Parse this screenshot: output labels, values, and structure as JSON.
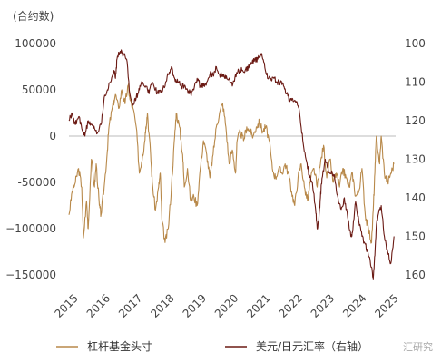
{
  "chart_data": {
    "type": "line",
    "unit_label": "(合约数)",
    "left_axis": {
      "min": -150000,
      "max": 100000,
      "ticks": [
        100000,
        50000,
        0,
        -50000,
        -100000,
        -150000
      ],
      "tick_labels": [
        "100000",
        "50000",
        "0",
        "-50000",
        "−100000",
        "−150000"
      ]
    },
    "right_axis": {
      "min": 100,
      "max": 160,
      "reversed": true,
      "ticks": [
        100,
        110,
        120,
        130,
        140,
        150,
        160
      ],
      "tick_labels": [
        "100",
        "110",
        "120",
        "130",
        "140",
        "150",
        "160"
      ]
    },
    "x_axis": {
      "min": 2015.0,
      "max": 2025.2,
      "tick_labels": [
        "2015",
        "2016",
        "2017",
        "2018",
        "2019",
        "2020",
        "2021",
        "2022",
        "2023",
        "2024",
        "2025"
      ],
      "tick_values": [
        2015,
        2016,
        2017,
        2018,
        2019,
        2020,
        2021,
        2022,
        2023,
        2024,
        2025
      ]
    },
    "grid": false,
    "legend_position": "bottom",
    "series": [
      {
        "name": "杠杆基金头寸",
        "axis": "left",
        "color": "#b8894a",
        "points": [
          [
            2015.0,
            -85000
          ],
          [
            2015.1,
            -60000
          ],
          [
            2015.2,
            -50000
          ],
          [
            2015.3,
            -35000
          ],
          [
            2015.4,
            -55000
          ],
          [
            2015.45,
            -110000
          ],
          [
            2015.55,
            -70000
          ],
          [
            2015.6,
            -100000
          ],
          [
            2015.7,
            -25000
          ],
          [
            2015.8,
            -55000
          ],
          [
            2015.85,
            -30000
          ],
          [
            2015.95,
            -75000
          ],
          [
            2016.0,
            -85000
          ],
          [
            2016.1,
            -55000
          ],
          [
            2016.2,
            -15000
          ],
          [
            2016.25,
            10000
          ],
          [
            2016.35,
            30000
          ],
          [
            2016.45,
            45000
          ],
          [
            2016.55,
            30000
          ],
          [
            2016.65,
            50000
          ],
          [
            2016.75,
            35000
          ],
          [
            2016.85,
            55000
          ],
          [
            2016.9,
            40000
          ],
          [
            2017.0,
            30000
          ],
          [
            2017.1,
            10000
          ],
          [
            2017.2,
            -40000
          ],
          [
            2017.3,
            -20000
          ],
          [
            2017.35,
            -10000
          ],
          [
            2017.4,
            10000
          ],
          [
            2017.45,
            25000
          ],
          [
            2017.55,
            -20000
          ],
          [
            2017.6,
            -50000
          ],
          [
            2017.7,
            -80000
          ],
          [
            2017.8,
            -55000
          ],
          [
            2017.85,
            -40000
          ],
          [
            2017.9,
            -90000
          ],
          [
            2018.0,
            -115000
          ],
          [
            2018.1,
            -100000
          ],
          [
            2018.2,
            -55000
          ],
          [
            2018.3,
            0
          ],
          [
            2018.35,
            25000
          ],
          [
            2018.45,
            10000
          ],
          [
            2018.55,
            -20000
          ],
          [
            2018.6,
            -55000
          ],
          [
            2018.7,
            -35000
          ],
          [
            2018.8,
            -70000
          ],
          [
            2018.9,
            -65000
          ],
          [
            2019.0,
            -75000
          ],
          [
            2019.1,
            -35000
          ],
          [
            2019.2,
            -5000
          ],
          [
            2019.3,
            -20000
          ],
          [
            2019.4,
            -45000
          ],
          [
            2019.5,
            -20000
          ],
          [
            2019.6,
            10000
          ],
          [
            2019.7,
            25000
          ],
          [
            2019.8,
            35000
          ],
          [
            2019.9,
            10000
          ],
          [
            2020.0,
            -30000
          ],
          [
            2020.1,
            -15000
          ],
          [
            2020.2,
            -40000
          ],
          [
            2020.25,
            -5000
          ],
          [
            2020.35,
            5000
          ],
          [
            2020.45,
            -5000
          ],
          [
            2020.55,
            10000
          ],
          [
            2020.65,
            5000
          ],
          [
            2020.75,
            0
          ],
          [
            2020.85,
            10000
          ],
          [
            2020.95,
            15000
          ],
          [
            2021.05,
            5000
          ],
          [
            2021.15,
            10000
          ],
          [
            2021.25,
            -5000
          ],
          [
            2021.35,
            -35000
          ],
          [
            2021.45,
            -45000
          ],
          [
            2021.55,
            -35000
          ],
          [
            2021.65,
            -40000
          ],
          [
            2021.75,
            -30000
          ],
          [
            2021.85,
            -40000
          ],
          [
            2021.95,
            -60000
          ],
          [
            2022.05,
            -75000
          ],
          [
            2022.15,
            -45000
          ],
          [
            2022.25,
            -30000
          ],
          [
            2022.35,
            -55000
          ],
          [
            2022.45,
            -70000
          ],
          [
            2022.55,
            -45000
          ],
          [
            2022.65,
            -35000
          ],
          [
            2022.75,
            -55000
          ],
          [
            2022.85,
            -30000
          ],
          [
            2022.95,
            -10000
          ],
          [
            2023.05,
            -45000
          ],
          [
            2023.15,
            -25000
          ],
          [
            2023.25,
            -50000
          ],
          [
            2023.35,
            -40000
          ],
          [
            2023.45,
            -55000
          ],
          [
            2023.55,
            -35000
          ],
          [
            2023.65,
            -45000
          ],
          [
            2023.75,
            -55000
          ],
          [
            2023.85,
            -40000
          ],
          [
            2023.95,
            -65000
          ],
          [
            2024.05,
            -60000
          ],
          [
            2024.15,
            -35000
          ],
          [
            2024.25,
            -85000
          ],
          [
            2024.35,
            -100000
          ],
          [
            2024.45,
            -115000
          ],
          [
            2024.5,
            -80000
          ],
          [
            2024.55,
            -40000
          ],
          [
            2024.6,
            0
          ],
          [
            2024.7,
            -30000
          ],
          [
            2024.75,
            0
          ],
          [
            2024.85,
            -40000
          ],
          [
            2024.95,
            -50000
          ],
          [
            2025.05,
            -40000
          ],
          [
            2025.15,
            -30000
          ]
        ]
      },
      {
        "name": "美元/日元汇率（右轴）",
        "axis": "right",
        "color": "#6b1a14",
        "points": [
          [
            2015.0,
            120
          ],
          [
            2015.1,
            118
          ],
          [
            2015.2,
            121
          ],
          [
            2015.3,
            119
          ],
          [
            2015.4,
            122
          ],
          [
            2015.5,
            124
          ],
          [
            2015.6,
            120
          ],
          [
            2015.7,
            121
          ],
          [
            2015.8,
            122
          ],
          [
            2015.9,
            123
          ],
          [
            2016.0,
            121
          ],
          [
            2016.1,
            114
          ],
          [
            2016.2,
            112
          ],
          [
            2016.3,
            110
          ],
          [
            2016.4,
            107
          ],
          [
            2016.45,
            109
          ],
          [
            2016.5,
            104
          ],
          [
            2016.6,
            102
          ],
          [
            2016.7,
            103
          ],
          [
            2016.8,
            104
          ],
          [
            2016.9,
            113
          ],
          [
            2017.0,
            116
          ],
          [
            2017.1,
            114
          ],
          [
            2017.2,
            112
          ],
          [
            2017.3,
            110
          ],
          [
            2017.4,
            111
          ],
          [
            2017.5,
            113
          ],
          [
            2017.6,
            110
          ],
          [
            2017.7,
            112
          ],
          [
            2017.8,
            113
          ],
          [
            2017.9,
            112
          ],
          [
            2018.0,
            111
          ],
          [
            2018.1,
            108
          ],
          [
            2018.2,
            106
          ],
          [
            2018.3,
            109
          ],
          [
            2018.4,
            110
          ],
          [
            2018.5,
            111
          ],
          [
            2018.6,
            111
          ],
          [
            2018.7,
            112
          ],
          [
            2018.8,
            113
          ],
          [
            2018.9,
            112
          ],
          [
            2019.0,
            109
          ],
          [
            2019.1,
            111
          ],
          [
            2019.2,
            111
          ],
          [
            2019.3,
            110
          ],
          [
            2019.4,
            108
          ],
          [
            2019.5,
            108
          ],
          [
            2019.6,
            106
          ],
          [
            2019.7,
            108
          ],
          [
            2019.8,
            108
          ],
          [
            2019.9,
            109
          ],
          [
            2020.0,
            109
          ],
          [
            2020.1,
            111
          ],
          [
            2020.2,
            108
          ],
          [
            2020.3,
            107
          ],
          [
            2020.4,
            107
          ],
          [
            2020.5,
            107
          ],
          [
            2020.6,
            106
          ],
          [
            2020.7,
            105
          ],
          [
            2020.8,
            104
          ],
          [
            2020.9,
            104
          ],
          [
            2021.0,
            103
          ],
          [
            2021.1,
            105
          ],
          [
            2021.2,
            109
          ],
          [
            2021.3,
            109
          ],
          [
            2021.4,
            109
          ],
          [
            2021.5,
            110
          ],
          [
            2021.6,
            110
          ],
          [
            2021.7,
            111
          ],
          [
            2021.8,
            113
          ],
          [
            2021.9,
            115
          ],
          [
            2022.0,
            115
          ],
          [
            2022.1,
            115
          ],
          [
            2022.2,
            118
          ],
          [
            2022.3,
            125
          ],
          [
            2022.4,
            130
          ],
          [
            2022.5,
            134
          ],
          [
            2022.6,
            136
          ],
          [
            2022.7,
            143
          ],
          [
            2022.75,
            148
          ],
          [
            2022.8,
            146
          ],
          [
            2022.85,
            140
          ],
          [
            2022.9,
            135
          ],
          [
            2023.0,
            130
          ],
          [
            2023.1,
            133
          ],
          [
            2023.2,
            133
          ],
          [
            2023.3,
            135
          ],
          [
            2023.4,
            140
          ],
          [
            2023.5,
            143
          ],
          [
            2023.6,
            140
          ],
          [
            2023.7,
            145
          ],
          [
            2023.8,
            150
          ],
          [
            2023.85,
            149
          ],
          [
            2023.95,
            141
          ],
          [
            2024.05,
            146
          ],
          [
            2024.15,
            150
          ],
          [
            2024.25,
            152
          ],
          [
            2024.35,
            155
          ],
          [
            2024.45,
            158
          ],
          [
            2024.5,
            161
          ],
          [
            2024.55,
            155
          ],
          [
            2024.6,
            147
          ],
          [
            2024.7,
            143
          ],
          [
            2024.75,
            142
          ],
          [
            2024.85,
            150
          ],
          [
            2024.95,
            154
          ],
          [
            2025.05,
            157
          ],
          [
            2025.15,
            150
          ]
        ]
      }
    ]
  },
  "watermark": "汇研究"
}
